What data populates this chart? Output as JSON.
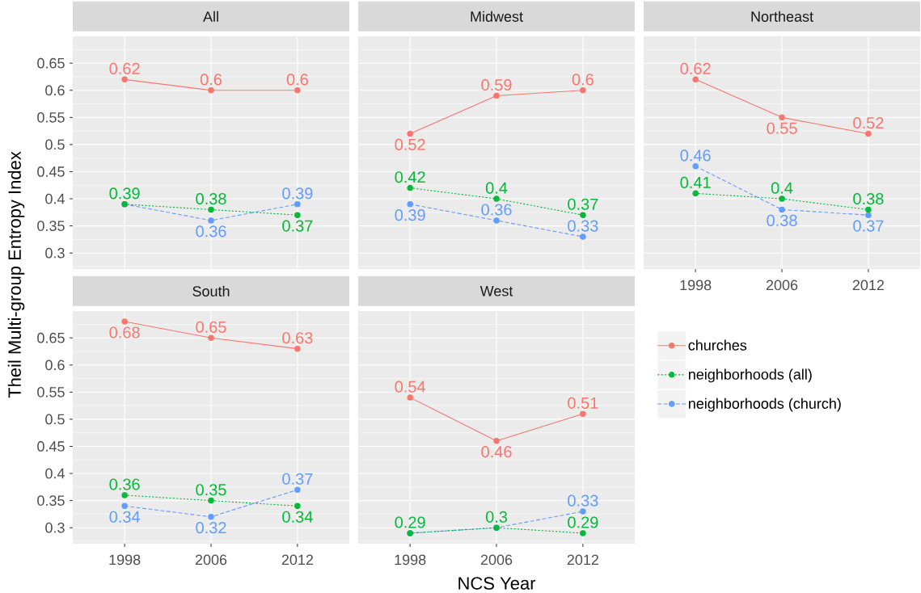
{
  "chart_data": [
    {
      "type": "line",
      "title": "All",
      "categories": [
        "1998",
        "2006",
        "2012"
      ],
      "ylabel": "Theil Multi-group Entropy Index",
      "ylim": [
        0.2705,
        0.6995
      ],
      "yticks": [
        0.3,
        0.35,
        0.4,
        0.45,
        0.5,
        0.55,
        0.6,
        0.65
      ],
      "grid": true,
      "marker": "circle",
      "tick_labels": "y",
      "series": [
        {
          "color": "#F8766D",
          "line_style": "solid",
          "values": [
            0.62,
            0.6,
            0.6
          ],
          "value_labels": [
            "0.62",
            "0.6",
            "0.6"
          ]
        },
        {
          "color": "#00BA38",
          "line_style": "dotted",
          "values": [
            0.39,
            0.38,
            0.37
          ],
          "value_labels": [
            "0.39",
            "0.38",
            "0.37"
          ]
        },
        {
          "color": "#619CFF",
          "line_style": "dashed",
          "values": [
            0.39,
            0.36,
            0.39
          ],
          "value_labels": [
            null,
            "0.36",
            "0.39"
          ]
        }
      ]
    },
    {
      "type": "line",
      "title": "Midwest",
      "categories": [
        "1998",
        "2006",
        "2012"
      ],
      "ylim": [
        0.2705,
        0.6995
      ],
      "yticks": [
        0.3,
        0.35,
        0.4,
        0.45,
        0.5,
        0.55,
        0.6,
        0.65
      ],
      "grid": true,
      "marker": "circle",
      "data_labels": true,
      "tick_labels": false,
      "series": [
        {
          "color": "#F8766D",
          "line_style": "solid",
          "values": [
            0.52,
            0.59,
            0.6
          ]
        },
        {
          "color": "#00BA38",
          "line_style": "dotted",
          "values": [
            0.42,
            0.4,
            0.37
          ]
        },
        {
          "color": "#619CFF",
          "line_style": "dashed",
          "values": [
            0.39,
            0.36,
            0.33
          ]
        }
      ]
    },
    {
      "type": "line",
      "title": "Northeast",
      "categories": [
        "1998",
        "2006",
        "2012"
      ],
      "ylim": [
        0.2705,
        0.6995
      ],
      "yticks": [
        0.3,
        0.35,
        0.4,
        0.45,
        0.5,
        0.55,
        0.6,
        0.65
      ],
      "grid": true,
      "marker": "circle",
      "data_labels": true,
      "tick_labels": "x",
      "series": [
        {
          "color": "#F8766D",
          "line_style": "solid",
          "values": [
            0.62,
            0.55,
            0.52
          ]
        },
        {
          "color": "#00BA38",
          "line_style": "dotted",
          "values": [
            0.41,
            0.4,
            0.38
          ]
        },
        {
          "color": "#619CFF",
          "line_style": "dashed",
          "values": [
            0.46,
            0.38,
            0.37
          ]
        }
      ]
    },
    {
      "type": "line",
      "title": "South",
      "categories": [
        "1998",
        "2006",
        "2012"
      ],
      "ylim": [
        0.2705,
        0.6995
      ],
      "yticks": [
        0.3,
        0.35,
        0.4,
        0.45,
        0.5,
        0.55,
        0.6,
        0.65
      ],
      "grid": true,
      "marker": "circle",
      "data_labels": true,
      "series": [
        {
          "color": "#F8766D",
          "line_style": "solid",
          "values": [
            0.68,
            0.65,
            0.63
          ]
        },
        {
          "color": "#00BA38",
          "line_style": "dotted",
          "values": [
            0.36,
            0.35,
            0.34
          ]
        },
        {
          "color": "#619CFF",
          "line_style": "dashed",
          "values": [
            0.34,
            0.32,
            0.37
          ]
        }
      ]
    },
    {
      "type": "line",
      "title": "West",
      "categories": [
        "1998",
        "2006",
        "2012"
      ],
      "xlabel": "NCS Year",
      "ylim": [
        0.2705,
        0.6995
      ],
      "yticks": [
        0.3,
        0.35,
        0.4,
        0.45,
        0.5,
        0.55,
        0.6,
        0.65
      ],
      "grid": true,
      "marker": "circle",
      "tick_labels": "x",
      "legend": "right",
      "series": [
        {
          "name": "churches",
          "color": "#F8766D",
          "line_style": "solid",
          "values": [
            0.54,
            0.46,
            0.51
          ],
          "value_labels": [
            "0.54",
            "0.46",
            "0.51"
          ]
        },
        {
          "name": "neighborhoods (all)",
          "color": "#00BA38",
          "line_style": "dotted",
          "values": [
            0.29,
            0.3,
            0.29
          ],
          "value_labels": [
            "0.29",
            "0.3",
            "0.29"
          ]
        },
        {
          "name": "neighborhoods (church)",
          "color": "#619CFF",
          "line_style": "dashed",
          "values": [
            0.29,
            0.3,
            0.33
          ],
          "value_labels": [
            null,
            null,
            "0.33"
          ]
        }
      ]
    }
  ]
}
